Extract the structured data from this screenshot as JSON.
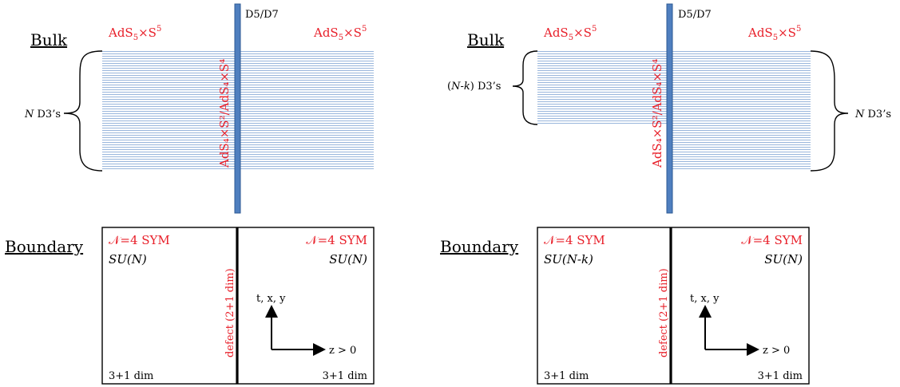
{
  "colors": {
    "accent_red": "#e8202a",
    "brane_fill": "#4f7fbf",
    "brane_stroke": "#2c5a93",
    "d3_lines": "#8eaed8"
  },
  "left": {
    "bulk_label": "Bulk",
    "boundary_label": "Boundary",
    "geom_left": "AdS",
    "geom_right": "AdS",
    "brane": "D5/D7",
    "d3_count": "N D3's",
    "defect_geom": "AdS₄×S²/AdS₄×S⁴",
    "sym_left": "𝒩=4 SYM",
    "sym_right": "𝒩=4 SYM",
    "group_left": "SU(N)",
    "group_right": "SU(N)",
    "defect_label": "defect (2+1 dim)",
    "axis_y": "t, x, y",
    "axis_x": "z > 0",
    "dim_left": "3+1 dim",
    "dim_right": "3+1 dim"
  },
  "right": {
    "bulk_label": "Bulk",
    "boundary_label": "Boundary",
    "geom_left": "AdS",
    "geom_right": "AdS",
    "brane": "D5/D7",
    "d3_count_left": "(N-k) D3's",
    "d3_count_right": "N D3's",
    "defect_geom": "AdS₄×S²/AdS₄×S⁴",
    "sym_left": "𝒩=4 SYM",
    "sym_right": "𝒩=4 SYM",
    "group_left": "SU(N-k)",
    "group_right": "SU(N)",
    "defect_label": "defect (2+1 dim)",
    "axis_y": "t, x, y",
    "axis_x": "z > 0",
    "dim_left": "3+1 dim",
    "dim_right": "3+1 dim"
  }
}
